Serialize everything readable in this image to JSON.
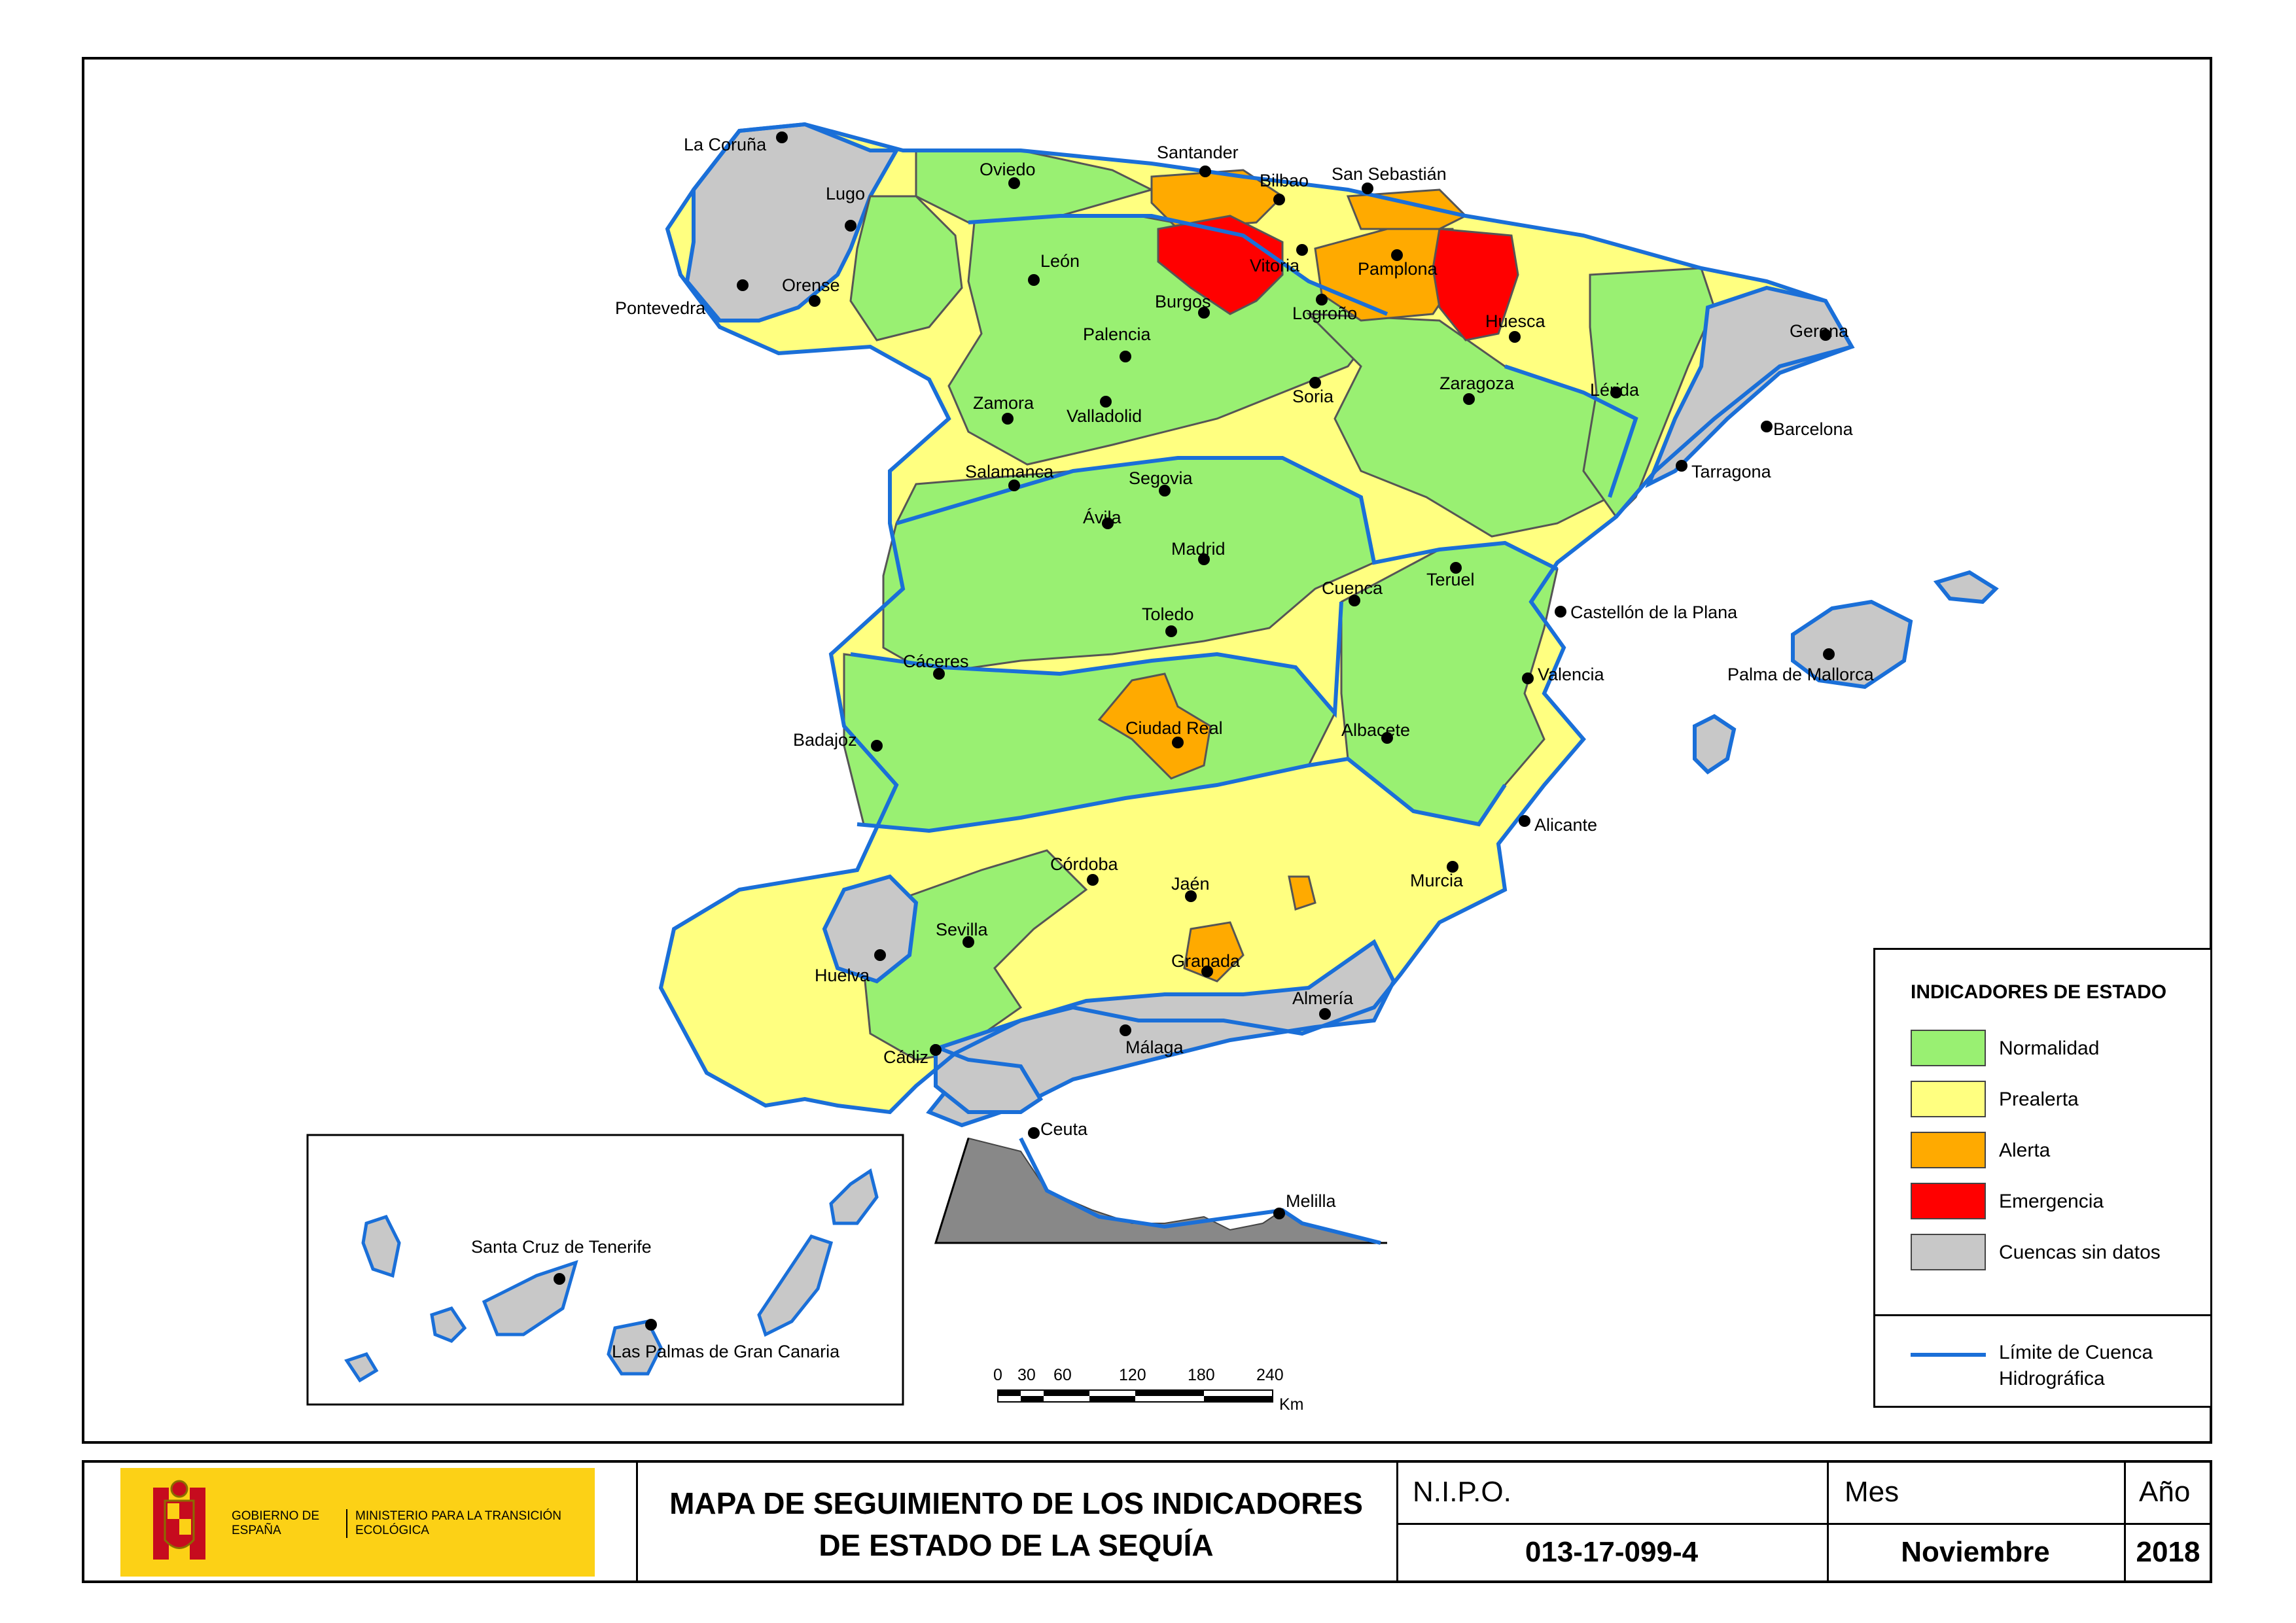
{
  "legend": {
    "title": "INDICADORES DE ESTADO",
    "items": [
      {
        "label": "Normalidad",
        "color": "#99f072"
      },
      {
        "label": "Prealerta",
        "color": "#ffff80"
      },
      {
        "label": "Alerta",
        "color": "#ffaa00"
      },
      {
        "label": "Emergencia",
        "color": "#ff0000"
      },
      {
        "label": "Cuencas sin datos",
        "color": "#c8c8c8"
      }
    ],
    "boundary_label": "Límite de Cuenca Hidrográfica",
    "boundary_color": "#1a6fd8"
  },
  "cities": [
    "La Coruña",
    "Lugo",
    "Oviedo",
    "Santander",
    "Bilbao",
    "San Sebastián",
    "Pontevedra",
    "Orense",
    "León",
    "Vitoria",
    "Pamplona",
    "Burgos",
    "Logroño",
    "Huesca",
    "Gerona",
    "Palencia",
    "Soria",
    "Zaragoza",
    "Lérida",
    "Zamora",
    "Valladolid",
    "Barcelona",
    "Tarragona",
    "Salamanca",
    "Segovia",
    "Ávila",
    "Madrid",
    "Teruel",
    "Cuenca",
    "Toledo",
    "Castellón de la Plana",
    "Palma de Mallorca",
    "Cáceres",
    "Valencia",
    "Badajoz",
    "Ciudad Real",
    "Albacete",
    "Alicante",
    "Córdoba",
    "Jaén",
    "Murcia",
    "Sevilla",
    "Huelva",
    "Granada",
    "Almería",
    "Málaga",
    "Cádiz",
    "Ceuta",
    "Melilla",
    "Santa Cruz de Tenerife",
    "Las Palmas de Gran Canaria"
  ],
  "scale": {
    "ticks": [
      "0",
      "30",
      "60",
      "120",
      "180",
      "240"
    ],
    "unit": "Km"
  },
  "footer": {
    "logo_gobierno": "GOBIERNO DE ESPAÑA",
    "logo_ministerio": "MINISTERIO PARA LA TRANSICIÓN ECOLÓGICA",
    "title_line1": "MAPA DE SEGUIMIENTO DE LOS INDICADORES",
    "title_line2": "DE ESTADO DE LA SEQUÍA",
    "nipo_label": "N.I.P.O.",
    "nipo_value": "013-17-099-4",
    "mes_label": "Mes",
    "mes_value": "Noviembre",
    "ano_label": "Año",
    "ano_value": "2018"
  }
}
